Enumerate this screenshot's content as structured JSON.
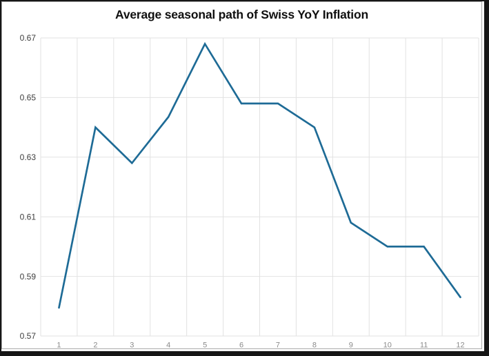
{
  "chart_data": {
    "type": "line",
    "title": "Average seasonal path of Swiss YoY Inflation",
    "categories": [
      "1",
      "2",
      "3",
      "4",
      "5",
      "6",
      "7",
      "8",
      "9",
      "10",
      "11",
      "12"
    ],
    "values": [
      0.5795,
      0.64,
      0.628,
      0.6435,
      0.668,
      0.648,
      0.648,
      0.64,
      0.608,
      0.6,
      0.6,
      0.583
    ],
    "xlabel": "",
    "ylabel": "",
    "ylim": [
      0.57,
      0.67
    ],
    "yticks": [
      0.57,
      0.59,
      0.61,
      0.63,
      0.65,
      0.67
    ],
    "ytick_labels": [
      "0.57",
      "0.59",
      "0.61",
      "0.63",
      "0.65",
      "0.67"
    ],
    "grid": true,
    "legend": false,
    "line_color": "#1e6b96",
    "grid_color": "#e2e2e2",
    "ytick_color": "#3d3d3d",
    "xtick_color": "#8a8a8a",
    "title_color": "#101010"
  }
}
